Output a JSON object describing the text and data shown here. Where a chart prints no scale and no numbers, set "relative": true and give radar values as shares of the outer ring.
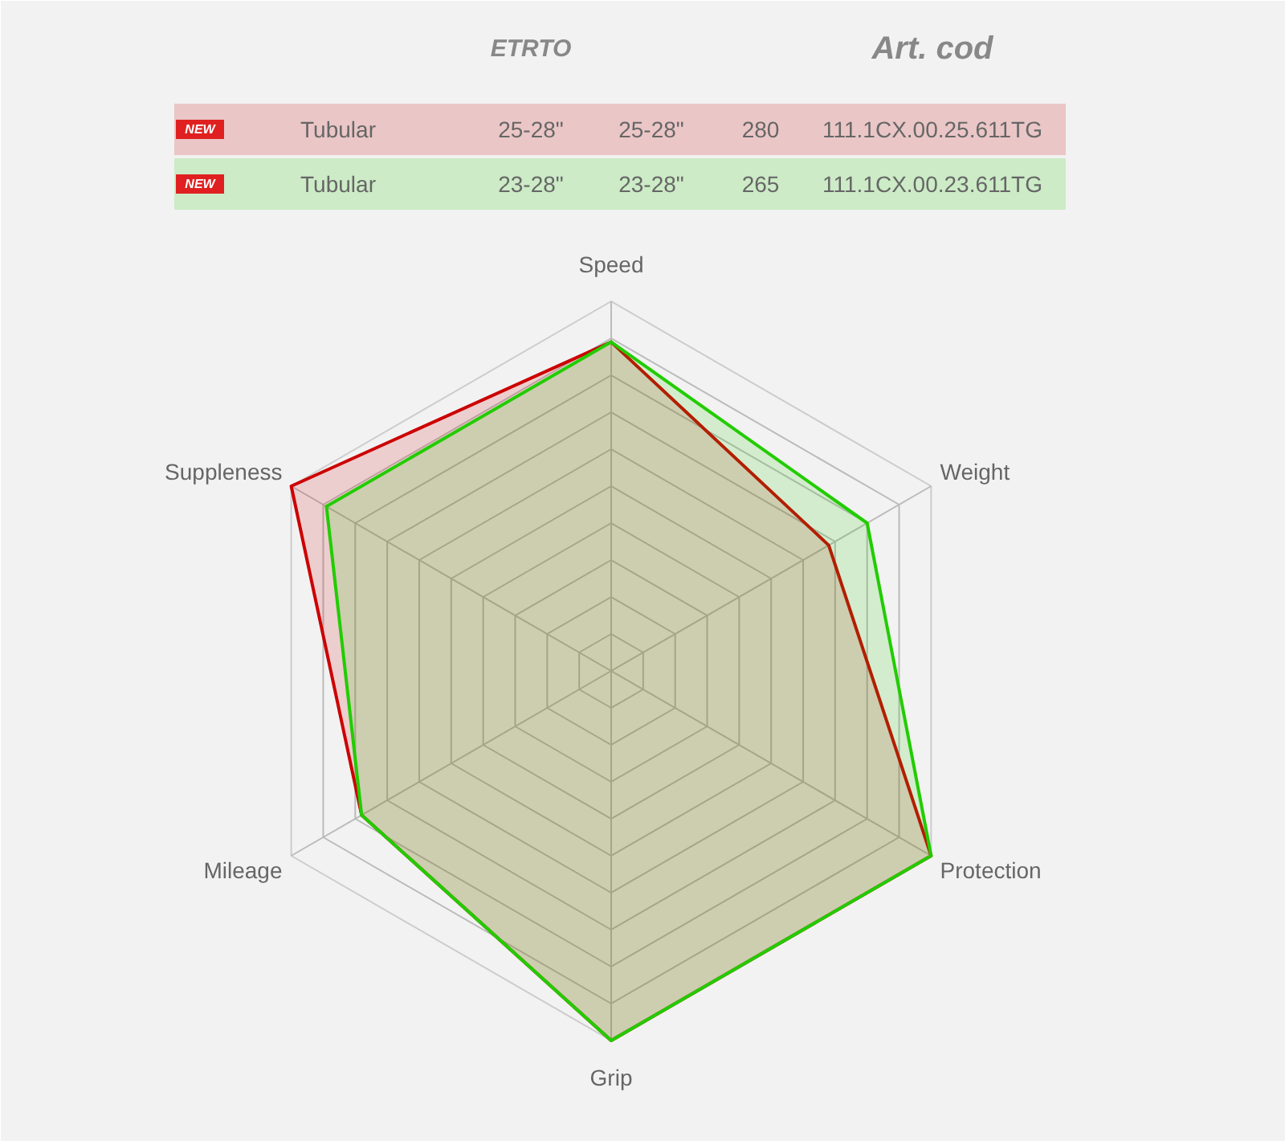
{
  "chart_data": {
    "type": "radar",
    "relative": true,
    "grid": true,
    "categories": [
      "Speed",
      "Weight",
      "Protection",
      "Grip",
      "Mileage",
      "Suppleness"
    ],
    "series": [
      {
        "color": "#cc0000",
        "values": [
          0.89,
          0.68,
          1.0,
          1.0,
          0.78,
          1.0
        ]
      },
      {
        "color": "#22cc00",
        "values": [
          0.89,
          0.8,
          1.0,
          1.0,
          0.78,
          0.89
        ]
      }
    ],
    "annotations": [
      "ETRTO",
      "Art. cod",
      "NEW",
      "Tubular",
      "25-28\"",
      "25-28\"",
      "280",
      "111.1CX.00.25.611TG",
      "NEW",
      "Tubular",
      "23-28\"",
      "23-28\"",
      "265",
      "111.1CX.00.23.611TG"
    ]
  }
}
